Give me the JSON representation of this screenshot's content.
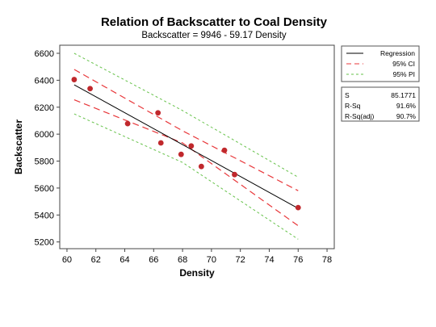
{
  "chart_data": {
    "type": "scatter",
    "title": "Relation of Backscatter to Coal Density",
    "subtitle": "Backscatter = 9946 - 59.17 Density",
    "xlabel": "Density",
    "ylabel": "Backscatter",
    "xlim": [
      59.5,
      78.5
    ],
    "ylim": [
      5150,
      6660
    ],
    "xticks": [
      60,
      62,
      64,
      66,
      68,
      70,
      72,
      74,
      76,
      78
    ],
    "yticks": [
      5200,
      5400,
      5600,
      5800,
      6000,
      6200,
      6400,
      6600
    ],
    "points": [
      {
        "x": 60.5,
        "y": 6405
      },
      {
        "x": 61.6,
        "y": 6338
      },
      {
        "x": 64.2,
        "y": 6078
      },
      {
        "x": 66.3,
        "y": 6158
      },
      {
        "x": 66.5,
        "y": 5935
      },
      {
        "x": 67.9,
        "y": 5850
      },
      {
        "x": 68.6,
        "y": 5912
      },
      {
        "x": 69.3,
        "y": 5760
      },
      {
        "x": 70.9,
        "y": 5880
      },
      {
        "x": 71.6,
        "y": 5700
      },
      {
        "x": 76.0,
        "y": 5455
      }
    ],
    "regression": {
      "intercept": 9946,
      "slope": -59.17,
      "x_range": [
        60.5,
        76.0
      ]
    },
    "ci_band": {
      "upper": [
        {
          "x": 60.5,
          "y": 6480
        },
        {
          "x": 68.0,
          "y": 6025
        },
        {
          "x": 76.0,
          "y": 5580
        }
      ],
      "lower": [
        {
          "x": 60.5,
          "y": 6255
        },
        {
          "x": 68.0,
          "y": 5935
        },
        {
          "x": 76.0,
          "y": 5320
        }
      ]
    },
    "pi_band": {
      "upper": [
        {
          "x": 60.5,
          "y": 6600
        },
        {
          "x": 68.0,
          "y": 6175
        },
        {
          "x": 76.0,
          "y": 5680
        }
      ],
      "lower": [
        {
          "x": 60.5,
          "y": 6150
        },
        {
          "x": 68.0,
          "y": 5790
        },
        {
          "x": 76.0,
          "y": 5220
        }
      ]
    },
    "legend": {
      "placement": "right",
      "entries": [
        {
          "label": "Regression",
          "color": "#000000",
          "dash": "solid"
        },
        {
          "label": "95% CI",
          "color": "#e8373a",
          "dash": "dashed"
        },
        {
          "label": "95% PI",
          "color": "#66c24a",
          "dash": "dotted"
        }
      ]
    },
    "stats": [
      {
        "label": "S",
        "value": "85.1771"
      },
      {
        "label": "R-Sq",
        "value": "91.6%"
      },
      {
        "label": "R-Sq(adj)",
        "value": "90.7%"
      }
    ],
    "colors": {
      "points": "#c0282c",
      "ci": "#e8373a",
      "pi": "#66c24a",
      "regression": "#000000"
    },
    "grid": false
  }
}
